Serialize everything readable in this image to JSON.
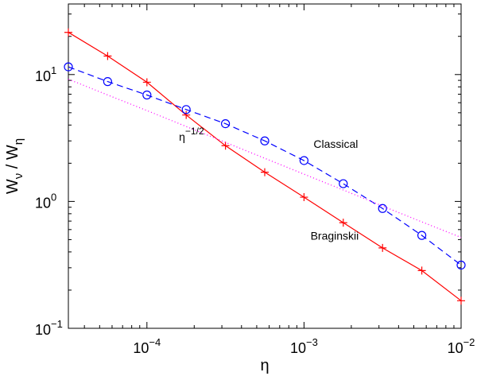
{
  "chart_data": {
    "type": "line",
    "title": "",
    "xlabel": "η",
    "ylabel": "W",
    "ylabel_sub": [
      "ν",
      "η"
    ],
    "xscale": "log",
    "yscale": "log",
    "xlim": [
      3.162e-05,
      0.01
    ],
    "ylim": [
      0.1,
      36
    ],
    "grid": false,
    "x_ticks": [
      {
        "value": 0.0001,
        "base": "10",
        "exp": "−4"
      },
      {
        "value": 0.001,
        "base": "10",
        "exp": "−3"
      },
      {
        "value": 0.01,
        "base": "10",
        "exp": "−2"
      }
    ],
    "y_ticks": [
      {
        "value": 0.1,
        "base": "10",
        "exp": "−1"
      },
      {
        "value": 1,
        "base": "10",
        "exp": "0"
      },
      {
        "value": 10,
        "base": "10",
        "exp": "1"
      }
    ],
    "x": [
      3.162e-05,
      5.623e-05,
      0.0001,
      0.0001778,
      0.0003162,
      0.0005623,
      0.001,
      0.001778,
      0.003162,
      0.005623,
      0.01
    ],
    "series": [
      {
        "label": "Braginskii",
        "color": "#ff0000",
        "line": "solid",
        "marker": "plus",
        "values": [
          21.5,
          14.0,
          8.7,
          4.8,
          2.75,
          1.7,
          1.08,
          0.68,
          0.43,
          0.285,
          0.165
        ]
      },
      {
        "label": "Classical",
        "color": "#0000ff",
        "line": "dashed",
        "marker": "circle",
        "values": [
          11.5,
          8.8,
          6.9,
          5.3,
          4.1,
          3.0,
          2.1,
          1.38,
          0.88,
          0.54,
          0.315
        ]
      },
      {
        "label": "η",
        "label_sup": "−1/2",
        "color": "#ff00ff",
        "line": "dotted",
        "marker": "none",
        "values": [
          9.2,
          6.9,
          5.2,
          3.9,
          2.92,
          2.19,
          1.64,
          1.23,
          0.92,
          0.69,
          0.52
        ]
      }
    ],
    "annotations": [
      {
        "text": "Classical",
        "x": 0.00115,
        "y": 2.65
      },
      {
        "text": "Braginskii",
        "x": 0.0011,
        "y": 0.5
      },
      {
        "text": "η",
        "sup": "−1/2",
        "x": 0.00016,
        "y": 3.0
      }
    ]
  }
}
